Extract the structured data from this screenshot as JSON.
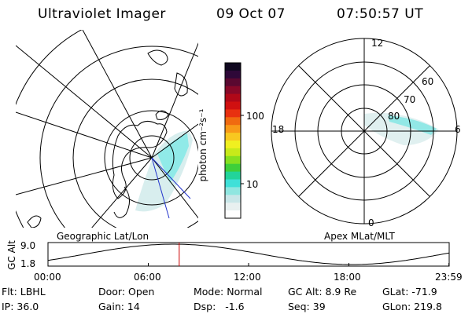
{
  "header": {
    "instrument": "Ultraviolet Imager",
    "date": "09 Oct 07",
    "time": "07:50:57 UT"
  },
  "colorbar": {
    "unit_label": "photon cm⁻²s⁻¹",
    "ticks": [
      {
        "label": "100",
        "value": 100
      },
      {
        "label": "10",
        "value": 10
      }
    ],
    "colors": [
      "#ffffff",
      "#e8f0f0",
      "#c8e6e8",
      "#8fe6e0",
      "#3fe0d8",
      "#22d49a",
      "#3ecf3a",
      "#86e020",
      "#c8ea1a",
      "#f0f020",
      "#f8c820",
      "#f89a18",
      "#f06a10",
      "#e83010",
      "#d01010",
      "#b00818",
      "#880828",
      "#5a0830",
      "#2e0838",
      "#100820"
    ]
  },
  "left_map": {
    "caption": "Geographic Lat/Lon"
  },
  "right_map": {
    "caption": "Apex MLat/MLT",
    "mlt_labels": {
      "top": "12",
      "left": "18",
      "right": "6",
      "bottom": "0"
    },
    "lat_labels": [
      {
        "label": "60",
        "value": 60
      },
      {
        "label": "70",
        "value": 70
      },
      {
        "label": "80",
        "value": 80
      }
    ]
  },
  "altitude_plot": {
    "axis_label": "GC Alt",
    "y_ticks": [
      {
        "label": "9.0",
        "value": 9.0
      },
      {
        "label": "1.8",
        "value": 1.8
      }
    ],
    "x_ticks": [
      {
        "label": "00:00",
        "hour": 0
      },
      {
        "label": "06:00",
        "hour": 6
      },
      {
        "label": "12:00",
        "hour": 12
      },
      {
        "label": "18:00",
        "hour": 18
      },
      {
        "label": "23:59",
        "hour": 23.983
      }
    ],
    "current_hour": 7.85,
    "marker_color": "#cc0000"
  },
  "footer": {
    "flt": "Flt: LBHL",
    "door": "Door: Open",
    "mode": "Mode: Normal",
    "gc_alt": "GC Alt: 8.9 Re",
    "glat": "GLat: -71.9",
    "ip": "IP: 36.0",
    "gain": "Gain: 14",
    "dsp": "Dsp:   -1.6",
    "seq": "Seq: 39",
    "glon": "GLon: 219.8"
  }
}
